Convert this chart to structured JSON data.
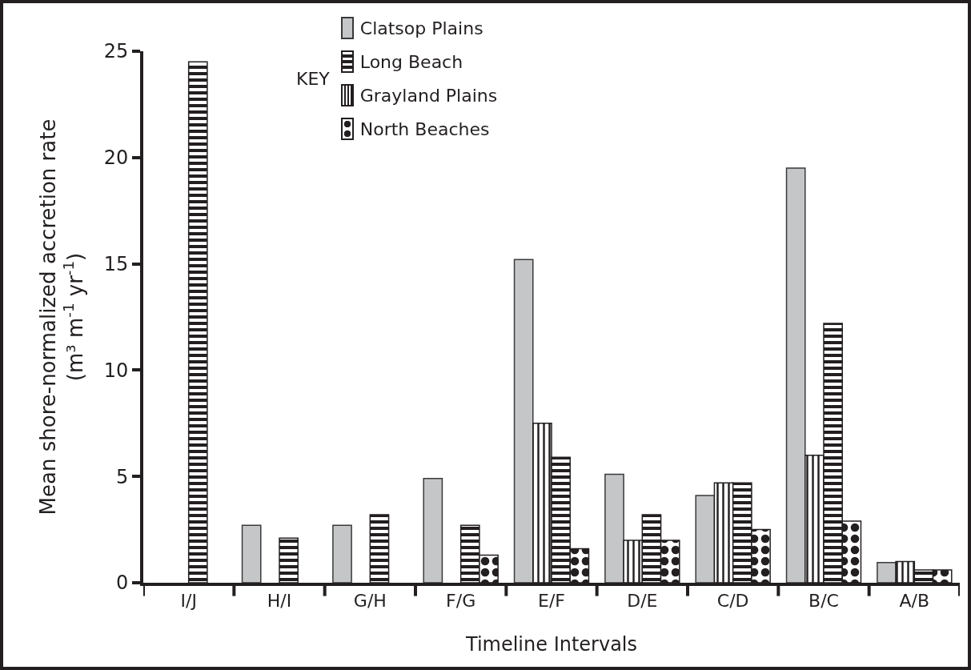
{
  "chart_data": {
    "type": "bar",
    "xlabel": "Timeline Intervals",
    "ylabel": "Mean shore-normalized accretion rate\n(m³ m$^{-1}$ yr$^{-1}$)",
    "legend_title": "KEY",
    "legend": "top",
    "grid": false,
    "categories": [
      "I/J",
      "H/I",
      "G/H",
      "F/G",
      "E/F",
      "D/E",
      "C/D",
      "B/C",
      "A/B"
    ],
    "ylim": [
      0,
      25
    ],
    "yticks": [
      0,
      5,
      10,
      15,
      20,
      25
    ],
    "series": [
      {
        "name": "Clatsop Plains",
        "color": "#c4c6c8",
        "values": [
          null,
          2.7,
          2.7,
          4.9,
          15.2,
          5.1,
          4.1,
          19.5,
          0.95
        ]
      },
      {
        "name": "Grayland Plains",
        "color": "#231f20",
        "values": [
          null,
          null,
          null,
          null,
          7.5,
          2.0,
          4.7,
          6.0,
          1.0
        ]
      },
      {
        "name": "Long Beach",
        "color": "#231f20",
        "values": [
          24.5,
          2.1,
          3.2,
          2.7,
          5.9,
          3.2,
          4.7,
          12.2,
          0.6
        ]
      },
      {
        "name": "North Beaches",
        "color": "#231f20",
        "values": [
          null,
          null,
          null,
          1.3,
          1.6,
          2.0,
          2.5,
          2.9,
          0.6
        ]
      }
    ]
  }
}
